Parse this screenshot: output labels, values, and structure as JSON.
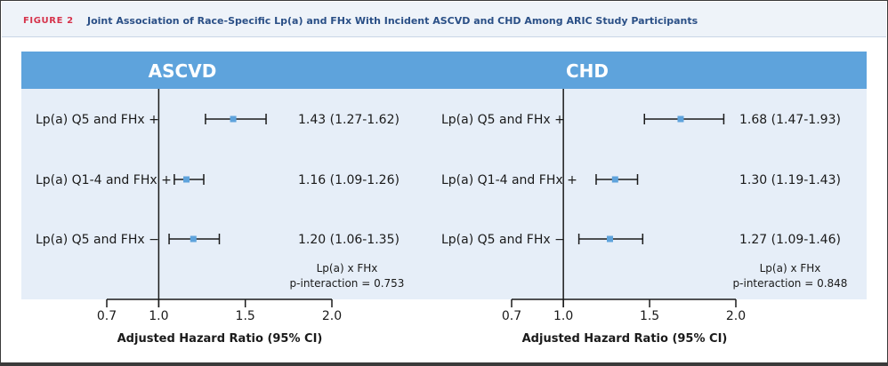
{
  "figure": {
    "label": "FIGURE 2",
    "title": "Joint Association of Race-Specific Lp(a) and FHx With Incident ASCVD and CHD Among ARIC Study Participants"
  },
  "colors": {
    "panel_header": "#5ea3dc",
    "panel_bg": "#e6eef8",
    "marker": "#5ea3dc",
    "line": "#1a1a1a",
    "title_red": "#d6334b",
    "title_blue": "#2a4f86"
  },
  "chart_data": [
    {
      "type": "forest",
      "title": "ASCVD",
      "xlabel": "Adjusted Hazard Ratio (95% CI)",
      "xlim": [
        0.7,
        2.0
      ],
      "ticks": [
        0.7,
        1.0,
        1.5,
        2.0
      ],
      "tick_labels": [
        "0.7",
        "1.0",
        "1.5",
        "2.0"
      ],
      "reference": 1.0,
      "rows": [
        {
          "label": "Lp(a) Q5 and FHx +",
          "hr": 1.43,
          "lo": 1.27,
          "hi": 1.62,
          "text": "1.43 (1.27-1.62)"
        },
        {
          "label": "Lp(a) Q1-4 and FHx +",
          "hr": 1.16,
          "lo": 1.09,
          "hi": 1.26,
          "text": "1.16 (1.09-1.26)"
        },
        {
          "label": "Lp(a) Q5 and FHx −",
          "hr": 1.2,
          "lo": 1.06,
          "hi": 1.35,
          "text": "1.20 (1.06-1.35)"
        }
      ],
      "annotation": [
        "Lp(a) x FHx",
        "p-interaction = 0.753"
      ]
    },
    {
      "type": "forest",
      "title": "CHD",
      "xlabel": "Adjusted Hazard Ratio (95% CI)",
      "xlim": [
        0.7,
        2.0
      ],
      "ticks": [
        0.7,
        1.0,
        1.5,
        2.0
      ],
      "tick_labels": [
        "0.7",
        "1.0",
        "1.5",
        "2.0"
      ],
      "reference": 1.0,
      "rows": [
        {
          "label": "Lp(a) Q5 and FHx +",
          "hr": 1.68,
          "lo": 1.47,
          "hi": 1.93,
          "text": "1.68 (1.47-1.93)"
        },
        {
          "label": "Lp(a) Q1-4 and FHx +",
          "hr": 1.3,
          "lo": 1.19,
          "hi": 1.43,
          "text": "1.30 (1.19-1.43)"
        },
        {
          "label": "Lp(a) Q5 and FHx −",
          "hr": 1.27,
          "lo": 1.09,
          "hi": 1.46,
          "text": "1.27 (1.09-1.46)"
        }
      ],
      "annotation": [
        "Lp(a) x FHx",
        "p-interaction = 0.848"
      ]
    }
  ]
}
